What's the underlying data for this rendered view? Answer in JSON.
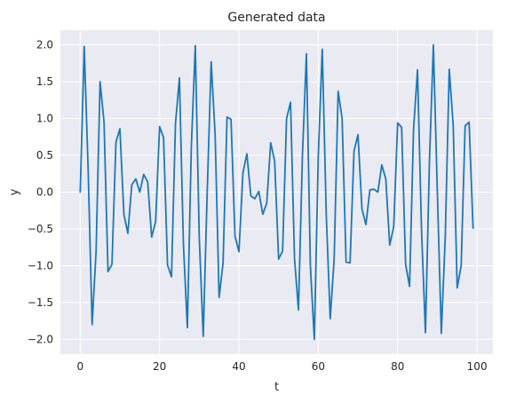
{
  "chart_data": {
    "type": "line",
    "title": "Generated data",
    "xlabel": "t",
    "ylabel": "y",
    "xlim": [
      -5,
      104
    ],
    "ylim": [
      -2.2,
      2.2
    ],
    "xticks": [
      0,
      20,
      40,
      60,
      80,
      100
    ],
    "yticks": [
      -2.0,
      -1.5,
      -1.0,
      -0.5,
      0.0,
      0.5,
      1.0,
      1.5,
      2.0
    ],
    "ytick_labels": [
      "−2.0",
      "−1.5",
      "−1.0",
      "−0.5",
      "0.0",
      "0.5",
      "1.0",
      "1.5",
      "2.0"
    ],
    "grid": true,
    "legend": "none",
    "colors": {
      "background": "#eaeaf2",
      "grid": "#ffffff",
      "line": "#1f77b4",
      "text": "#262626"
    },
    "series": [
      {
        "x": [
          0,
          1,
          2,
          3,
          4,
          5,
          6,
          7,
          8,
          9,
          10,
          11,
          12,
          13,
          14,
          15,
          16,
          17,
          18,
          19,
          20,
          21,
          22,
          23,
          24,
          25,
          26,
          27,
          28,
          29,
          30,
          31,
          32,
          33,
          34,
          35,
          36,
          37,
          38,
          39,
          40,
          41,
          42,
          43,
          44,
          45,
          46,
          47,
          48,
          49,
          50,
          51,
          52,
          53,
          54,
          55,
          56,
          57,
          58,
          59,
          60,
          61,
          62,
          63,
          64,
          65,
          66,
          67,
          68,
          69,
          70,
          71,
          72,
          73,
          74,
          75,
          76,
          77,
          78,
          79,
          80,
          81,
          82,
          83,
          84,
          85,
          86,
          87,
          88,
          89,
          90,
          91,
          92,
          93,
          94,
          95,
          96,
          97,
          98,
          99
        ],
        "values": [
          0.0,
          1.98,
          0.3,
          -1.8,
          -0.8,
          1.5,
          0.95,
          -1.08,
          -0.98,
          0.68,
          0.86,
          -0.3,
          -0.56,
          0.1,
          0.18,
          0.0,
          0.24,
          0.14,
          -0.61,
          -0.4,
          0.89,
          0.74,
          -0.99,
          -1.15,
          0.93,
          1.55,
          -0.7,
          -1.84,
          0.62,
          1.99,
          -0.62,
          -1.96,
          0.0,
          1.77,
          0.78,
          -1.43,
          -0.96,
          1.02,
          0.99,
          -0.6,
          -0.81,
          0.26,
          0.52,
          -0.05,
          -0.09,
          0.01,
          -0.3,
          -0.15,
          0.67,
          0.42,
          -0.91,
          -0.8,
          1.0,
          1.22,
          -0.9,
          -1.6,
          0.5,
          1.88,
          -1.0,
          -2.0,
          0.5,
          1.94,
          -0.3,
          -1.72,
          -0.9,
          1.37,
          1.0,
          -0.95,
          -0.96,
          0.56,
          0.78,
          -0.23,
          -0.44,
          0.03,
          0.04,
          0.0,
          0.37,
          0.18,
          -0.72,
          -0.47,
          0.94,
          0.88,
          -0.98,
          -1.28,
          0.85,
          1.66,
          -0.5,
          -1.91,
          0.4,
          2.0,
          0.0,
          -1.92,
          -0.6,
          1.67,
          0.9,
          -1.3,
          -1.0,
          0.9,
          0.95,
          -0.49
        ]
      }
    ]
  }
}
